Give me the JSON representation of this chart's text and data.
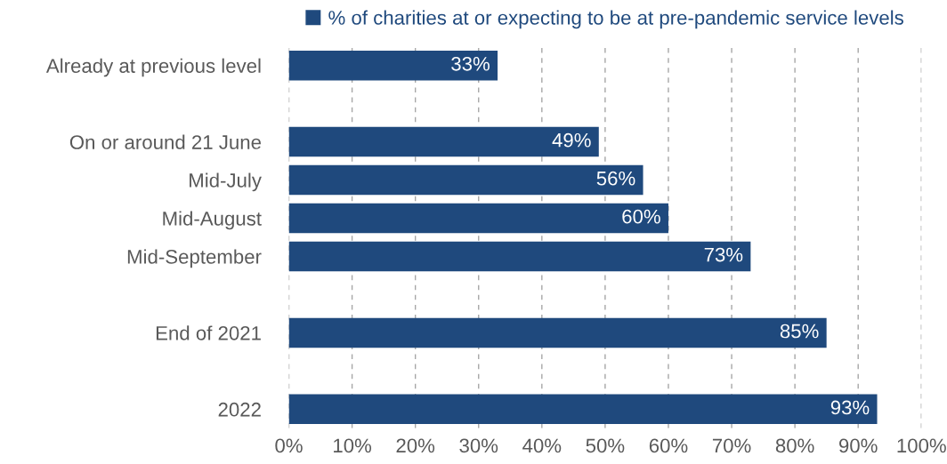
{
  "chart_data": {
    "type": "bar",
    "orientation": "horizontal",
    "categories": [
      "Already at previous level",
      null,
      "On or around 21 June",
      "Mid-July",
      "Mid-August",
      "Mid-September",
      null,
      "End of 2021",
      null,
      "2022"
    ],
    "series": [
      {
        "name": "% of charities at or expecting to be at pre-pandemic service levels",
        "color": "#1f497d",
        "values": [
          33,
          null,
          49,
          56,
          60,
          73,
          null,
          85,
          null,
          93
        ],
        "value_labels": [
          "33%",
          null,
          "49%",
          "56%",
          "60%",
          "73%",
          null,
          "85%",
          null,
          "93%"
        ]
      }
    ],
    "xlim": [
      0,
      100
    ],
    "xticks": [
      {
        "value": 0,
        "label": "0%"
      },
      {
        "value": 10,
        "label": "10%"
      },
      {
        "value": 20,
        "label": "20%"
      },
      {
        "value": 30,
        "label": "30%"
      },
      {
        "value": 40,
        "label": "40%"
      },
      {
        "value": 50,
        "label": "50%"
      },
      {
        "value": 60,
        "label": "60%"
      },
      {
        "value": 70,
        "label": "70%"
      },
      {
        "value": 80,
        "label": "80%"
      },
      {
        "value": 90,
        "label": "90%"
      },
      {
        "value": 100,
        "label": "100%"
      }
    ],
    "grid": "x",
    "legend": "top"
  }
}
